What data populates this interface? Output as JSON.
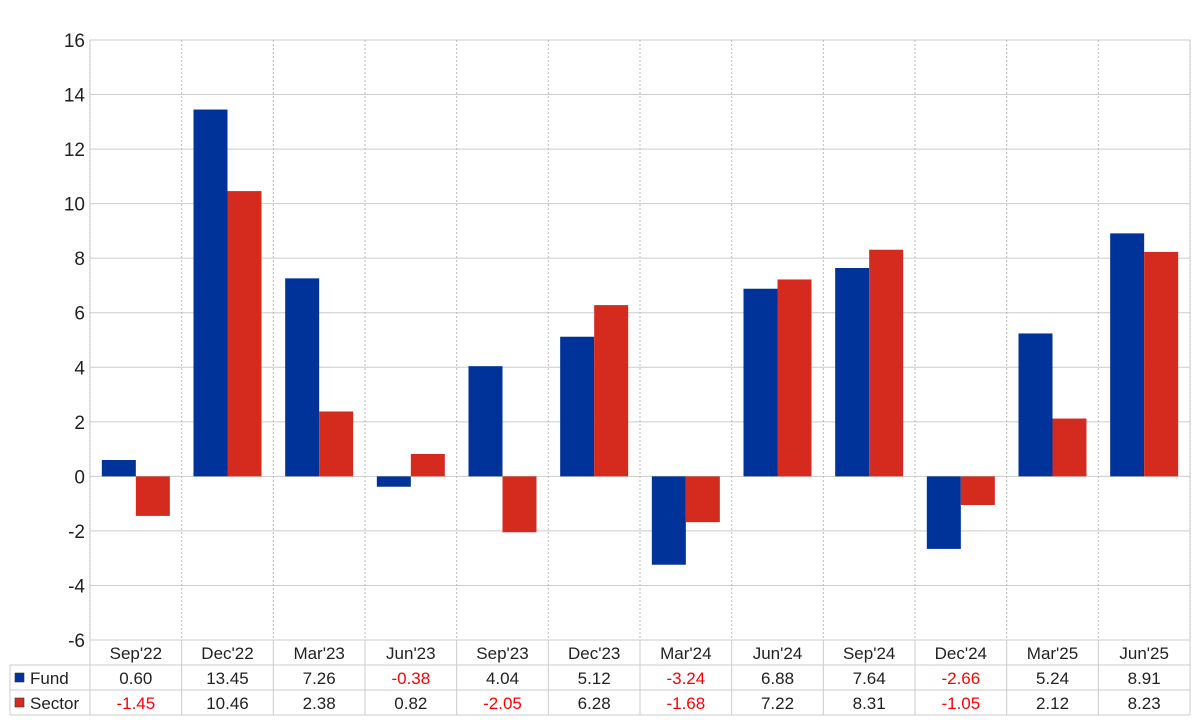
{
  "chart_data": {
    "type": "bar",
    "categories": [
      "Sep'22",
      "Dec'22",
      "Mar'23",
      "Jun'23",
      "Sep'23",
      "Dec'23",
      "Mar'24",
      "Jun'24",
      "Sep'24",
      "Dec'24",
      "Mar'25",
      "Jun'25"
    ],
    "series": [
      {
        "name": "Fund",
        "color": "#003399",
        "values": [
          0.6,
          13.45,
          7.26,
          -0.38,
          4.04,
          5.12,
          -3.24,
          6.88,
          7.64,
          -2.66,
          5.24,
          8.91
        ],
        "labels": [
          "0.60",
          "13.45",
          "7.26",
          "-0.38",
          "4.04",
          "5.12",
          "-3.24",
          "6.88",
          "7.64",
          "-2.66",
          "5.24",
          "8.91"
        ]
      },
      {
        "name": "Sector",
        "color": "#d52b1e",
        "values": [
          -1.45,
          10.46,
          2.38,
          0.82,
          -2.05,
          6.28,
          -1.68,
          7.22,
          8.31,
          -1.05,
          2.12,
          8.23
        ],
        "labels": [
          "-1.45",
          "10.46",
          "2.38",
          "0.82",
          "-2.05",
          "6.28",
          "-1.68",
          "7.22",
          "8.31",
          "-1.05",
          "2.12",
          "8.23"
        ]
      }
    ],
    "ylim": [
      -6,
      16
    ],
    "yticks": [
      "-6",
      "-4",
      "-2",
      "0",
      "2",
      "4",
      "6",
      "8",
      "10",
      "12",
      "14",
      "16"
    ],
    "grid": true,
    "legend": "table-below",
    "negative_color": "#ff0000",
    "positive_color": "#222222"
  }
}
